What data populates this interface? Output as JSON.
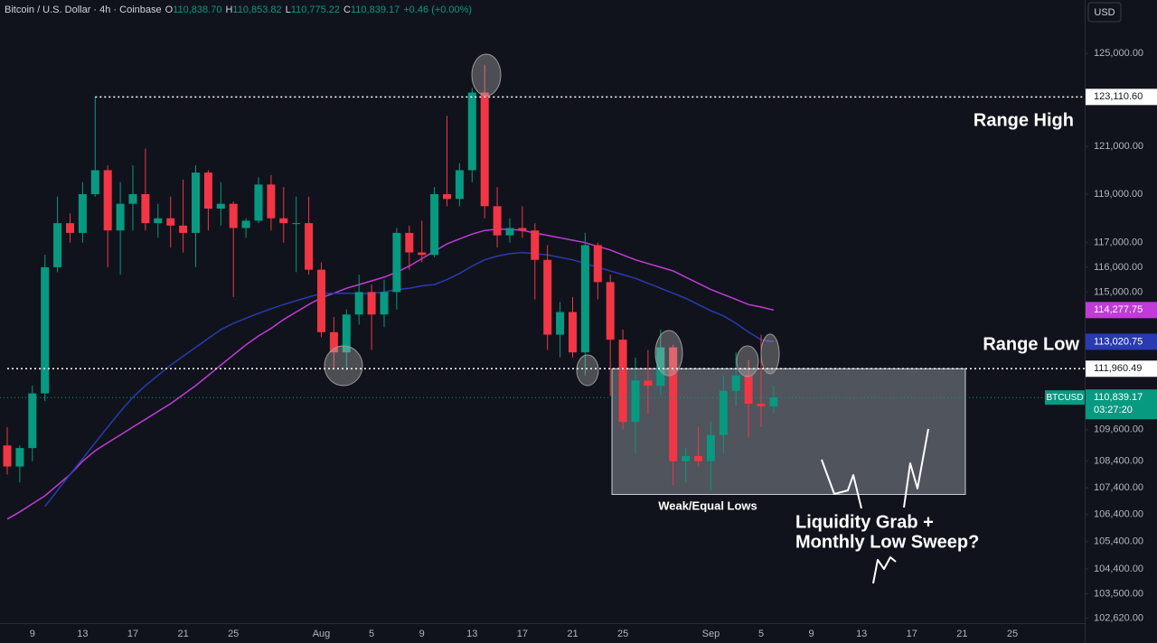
{
  "chart_data": {
    "type": "candlestick",
    "header": {
      "title": "Bitcoin / U.S. Dollar · 4h · Coinbase",
      "ohlc": [
        {
          "key": "O",
          "value": "110,838.70"
        },
        {
          "key": "H",
          "value": "110,853.82"
        },
        {
          "key": "L",
          "value": "110,775.22"
        },
        {
          "key": "C",
          "value": "110,839.17"
        }
      ],
      "change": "+0.46 (+0.00%)"
    },
    "currency": "USD",
    "log_scale": true,
    "grid": false,
    "up_color": "#089981",
    "down_color": "#f23645",
    "ylim": [
      102440,
      127350
    ],
    "yticks": [
      {
        "value": 125000,
        "label": "125,000.00"
      },
      {
        "value": 121000,
        "label": "121,000.00"
      },
      {
        "value": 119000,
        "label": "119,000.00"
      },
      {
        "value": 117000,
        "label": "117,000.00"
      },
      {
        "value": 116000,
        "label": "116,000.00"
      },
      {
        "value": 115000,
        "label": "115,000.00"
      },
      {
        "value": 109600,
        "label": "109,600.00"
      },
      {
        "value": 108400,
        "label": "108,400.00"
      },
      {
        "value": 107400,
        "label": "107,400.00"
      },
      {
        "value": 106400,
        "label": "106,400.00"
      },
      {
        "value": 105400,
        "label": "105,400.00"
      },
      {
        "value": 104400,
        "label": "104,400.00"
      },
      {
        "value": 103500,
        "label": "103,500.00"
      },
      {
        "value": 102620,
        "label": "102,620.00"
      }
    ],
    "categories": [
      null,
      null,
      "9",
      null,
      null,
      null,
      "13",
      null,
      null,
      null,
      "17",
      null,
      null,
      null,
      "21",
      null,
      null,
      null,
      "25",
      null,
      null,
      null,
      null,
      null,
      null,
      "Aug",
      null,
      null,
      null,
      "5",
      null,
      null,
      null,
      "9",
      null,
      null,
      null,
      "13",
      null,
      null,
      null,
      "17",
      null,
      null,
      null,
      "21",
      null,
      null,
      null,
      "25",
      null,
      null,
      null,
      null,
      null,
      null,
      "Sep",
      null,
      null,
      null,
      "5",
      null,
      null,
      null,
      "9",
      null,
      null,
      null,
      "13",
      null,
      null,
      null,
      "17",
      null,
      null,
      null,
      "21",
      null,
      null,
      null,
      "25",
      null,
      null,
      null
    ],
    "open": [
      109000,
      108200,
      108900,
      111000,
      116000,
      117800,
      117400,
      119000,
      120000,
      117500,
      118600,
      119000,
      117800,
      118000,
      117700,
      117400,
      119900,
      118400,
      118600,
      117600,
      117900,
      119400,
      118000,
      117800,
      117800,
      115900,
      113400,
      112600,
      114100,
      115000,
      114100,
      115000,
      117400,
      116600,
      116500,
      119000,
      118800,
      120000,
      123300,
      118500,
      117300,
      117600,
      117500,
      116300,
      113300,
      114200,
      112600,
      116900,
      115400,
      113100,
      109900,
      111500,
      111300,
      112800,
      108400,
      108600,
      108400,
      109400,
      111100,
      111700,
      110600,
      110500,
      null,
      null,
      null,
      null,
      null,
      null,
      null,
      null,
      null,
      null,
      null,
      null,
      null,
      null,
      null,
      null,
      null,
      null,
      null,
      null,
      null,
      null
    ],
    "high": [
      109700,
      109000,
      111300,
      116500,
      118900,
      118200,
      119500,
      123110.6,
      120200,
      119500,
      120200,
      120900,
      118600,
      118900,
      119600,
      120200,
      120000,
      119500,
      118700,
      118000,
      119700,
      119800,
      119300,
      118900,
      118900,
      116200,
      114000,
      114300,
      115700,
      115300,
      115500,
      117600,
      117700,
      117900,
      119300,
      122300,
      120300,
      123500,
      124500,
      119300,
      118000,
      118500,
      117800,
      116900,
      114600,
      114800,
      117400,
      117000,
      115700,
      113500,
      112400,
      112700,
      113500,
      112900,
      108900,
      109700,
      109900,
      111700,
      112600,
      112300,
      113300,
      111300,
      null,
      null,
      null,
      null,
      null,
      null,
      null,
      null,
      null,
      null,
      null,
      null,
      null,
      null,
      null,
      null,
      null,
      null,
      null,
      null,
      null,
      null
    ],
    "low": [
      107900,
      107600,
      108400,
      110700,
      115800,
      117000,
      117000,
      118900,
      116000,
      115700,
      117500,
      117500,
      117200,
      116800,
      116600,
      116000,
      117500,
      117700,
      114800,
      117200,
      117800,
      117500,
      117000,
      115800,
      115700,
      113200,
      111950,
      111900,
      113700,
      112700,
      113600,
      114300,
      115900,
      116200,
      116400,
      118500,
      118500,
      119500,
      118000,
      116800,
      117000,
      117200,
      114700,
      112700,
      112400,
      112400,
      111700,
      114700,
      110900,
      109600,
      108700,
      110200,
      110900,
      107500,
      107600,
      108200,
      107300,
      108700,
      110500,
      109300,
      109700,
      110200,
      null,
      null,
      null,
      null,
      null,
      null,
      null,
      null,
      null,
      null,
      null,
      null,
      null,
      null,
      null,
      null,
      null,
      null,
      null,
      null,
      null,
      null
    ],
    "close": [
      108200,
      108900,
      111000,
      116000,
      117800,
      117400,
      119000,
      120000,
      117500,
      118600,
      119000,
      117800,
      118000,
      117700,
      117400,
      119900,
      118400,
      118600,
      117600,
      117900,
      119400,
      118000,
      117800,
      117800,
      115900,
      113400,
      112600,
      114100,
      115000,
      114100,
      115000,
      117400,
      116600,
      116500,
      119000,
      118800,
      120000,
      123300,
      118500,
      117300,
      117600,
      117500,
      116300,
      113300,
      114200,
      112600,
      116900,
      115400,
      113100,
      109900,
      111500,
      111300,
      112800,
      108400,
      108600,
      108400,
      109400,
      111100,
      111700,
      110600,
      110500,
      110839.17,
      null,
      null,
      null,
      null,
      null,
      null,
      null,
      null,
      null,
      null,
      null,
      null,
      null,
      null,
      null,
      null,
      null,
      null,
      null,
      null,
      null,
      null
    ],
    "moving_averages": [
      {
        "color": "#c13bd8",
        "value_label": "114,277.75",
        "values": [
          106230,
          106500,
          106800,
          107100,
          107500,
          107900,
          108400,
          108800,
          109100,
          109400,
          109700,
          110000,
          110300,
          110600,
          110950,
          111300,
          111700,
          112100,
          112500,
          112900,
          113250,
          113550,
          113900,
          114200,
          114500,
          114770,
          114950,
          115150,
          115300,
          115450,
          115600,
          115800,
          116050,
          116350,
          116650,
          116950,
          117150,
          117350,
          117500,
          117550,
          117550,
          117500,
          117400,
          117300,
          117200,
          117100,
          117000,
          116850,
          116700,
          116500,
          116300,
          116150,
          116000,
          115850,
          115600,
          115350,
          115100,
          114900,
          114700,
          114500,
          114400,
          114277.75,
          null,
          null,
          null,
          null,
          null,
          null,
          null,
          null,
          null,
          null,
          null,
          null,
          null,
          null,
          null,
          null,
          null,
          null,
          null,
          null,
          null,
          null
        ]
      },
      {
        "color": "#2a3ab0",
        "value_label": "113,020.75",
        "values": [
          null,
          null,
          null,
          106700,
          107300,
          107900,
          108500,
          109100,
          109700,
          110300,
          110850,
          111300,
          111700,
          112100,
          112450,
          112800,
          113150,
          113500,
          113750,
          113950,
          114150,
          114330,
          114500,
          114650,
          114800,
          114940,
          114950,
          114950,
          114940,
          114940,
          115000,
          115100,
          115150,
          115250,
          115300,
          115500,
          115750,
          116050,
          116300,
          116450,
          116550,
          116600,
          116550,
          116500,
          116400,
          116300,
          116150,
          116000,
          115850,
          115700,
          115550,
          115350,
          115150,
          114950,
          114750,
          114500,
          114250,
          114050,
          113750,
          113400,
          113100,
          113020.75,
          null,
          null,
          null,
          null,
          null,
          null,
          null,
          null,
          null,
          null,
          null,
          null,
          null,
          null,
          null,
          null,
          null,
          null,
          null,
          null,
          null,
          null
        ]
      }
    ],
    "last_price": {
      "symbol": "BTCUSD",
      "label": "110,839.17",
      "countdown": "03:27:20",
      "color": "#089981"
    },
    "levels": [
      {
        "value": 123110.6,
        "label": "123,110.60",
        "text": "Range High"
      },
      {
        "value": 111960.49,
        "label": "111,960.49",
        "text": "Range Low"
      }
    ],
    "zone": {
      "top": 111960.49,
      "bottom": 107150
    },
    "annotations": [
      "Weak/Equal Lows",
      "Liquidity Grab +",
      "Monthly Low Sweep?"
    ]
  }
}
